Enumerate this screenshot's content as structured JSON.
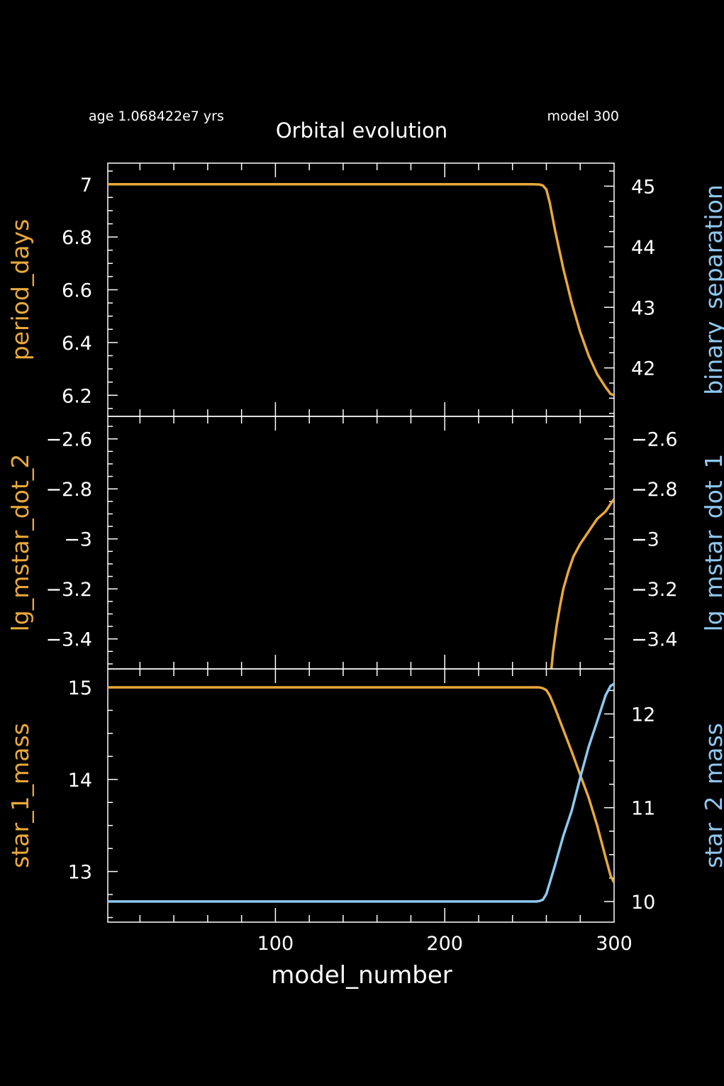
{
  "header": {
    "title": "Orbital evolution",
    "age_label": "age 1.068422e7 yrs",
    "model_label": "model 300"
  },
  "colors": {
    "background": "#000000",
    "axis": "#ffffff",
    "left_series": "#e8a93a",
    "right_series": "#8ec8f0"
  },
  "chart_data": [
    {
      "type": "line",
      "panel": "top",
      "xlabel": "model_number",
      "xlim": [
        1,
        300
      ],
      "left_axis": {
        "label": "period_days",
        "ylim": [
          6.12,
          7.08
        ],
        "ticks": [
          6.2,
          6.4,
          6.6,
          6.8,
          7
        ],
        "tick_labels": [
          "6.2",
          "6.4",
          "6.6",
          "6.8",
          "7"
        ]
      },
      "right_axis": {
        "label": "binary_separation",
        "ylim": [
          41.2,
          45.38
        ],
        "ticks": [
          42,
          43,
          44,
          45
        ],
        "tick_labels": [
          "42",
          "43",
          "44",
          "45"
        ]
      },
      "series": [
        {
          "name": "period_days",
          "axis": "left",
          "x": [
            1,
            50,
            100,
            150,
            200,
            240,
            252,
            256,
            258,
            260,
            262,
            265,
            270,
            275,
            280,
            285,
            290,
            295,
            298,
            300
          ],
          "values": [
            7.0,
            7.0,
            7.0,
            7.0,
            7.0,
            7.0,
            7.0,
            6.999,
            6.995,
            6.98,
            6.93,
            6.83,
            6.68,
            6.55,
            6.44,
            6.35,
            6.28,
            6.23,
            6.205,
            6.2
          ]
        }
      ]
    },
    {
      "type": "line",
      "panel": "middle",
      "xlabel": "model_number",
      "xlim": [
        1,
        300
      ],
      "left_axis": {
        "label": "lg_mstar_dot_2",
        "ylim": [
          -3.52,
          -2.51
        ],
        "ticks": [
          -3.4,
          -3.2,
          -3,
          -2.8,
          -2.6
        ],
        "tick_labels": [
          "−3.4",
          "−3.2",
          "−3",
          "−2.8",
          "−2.6"
        ]
      },
      "right_axis": {
        "label": "lg_mstar_dot_1",
        "ylim": [
          -3.52,
          -2.51
        ],
        "ticks": [
          -3.4,
          -3.2,
          -3,
          -2.8,
          -2.6
        ],
        "tick_labels": [
          "−3.4",
          "−3.2",
          "−3",
          "−2.8",
          "−2.6"
        ]
      },
      "series": [
        {
          "name": "lg_mstar_dot_2",
          "axis": "left",
          "x": [
            263,
            264,
            266,
            268,
            270,
            273,
            276,
            280,
            285,
            290,
            295,
            300
          ],
          "values": [
            -3.52,
            -3.45,
            -3.35,
            -3.27,
            -3.2,
            -3.13,
            -3.07,
            -3.02,
            -2.97,
            -2.92,
            -2.89,
            -2.84
          ]
        }
      ]
    },
    {
      "type": "line",
      "panel": "bottom",
      "xlabel": "model_number",
      "xlim": [
        1,
        300
      ],
      "x_ticks": [
        100,
        200,
        300
      ],
      "x_tick_labels": [
        "100",
        "200",
        "300"
      ],
      "left_axis": {
        "label": "star_1_mass",
        "ylim": [
          12.45,
          15.2
        ],
        "ticks": [
          13,
          14,
          15
        ],
        "tick_labels": [
          "13",
          "14",
          "15"
        ]
      },
      "right_axis": {
        "label": "star_2_mass",
        "ylim": [
          9.78,
          12.48
        ],
        "ticks": [
          10,
          11,
          12
        ],
        "tick_labels": [
          "10",
          "11",
          "12"
        ]
      },
      "series": [
        {
          "name": "star_1_mass",
          "axis": "left",
          "x": [
            1,
            50,
            100,
            150,
            200,
            250,
            254,
            256,
            258,
            260,
            262,
            265,
            270,
            275,
            280,
            285,
            290,
            295,
            298,
            300
          ],
          "values": [
            15.0,
            15.0,
            15.0,
            15.0,
            15.0,
            15.0,
            15.0,
            14.999,
            14.99,
            14.97,
            14.91,
            14.78,
            14.54,
            14.3,
            14.05,
            13.8,
            13.5,
            13.15,
            12.95,
            12.88
          ]
        },
        {
          "name": "star_2_mass",
          "axis": "right",
          "x": [
            1,
            50,
            100,
            150,
            200,
            250,
            254,
            256,
            258,
            260,
            262,
            265,
            270,
            275,
            280,
            285,
            290,
            295,
            298,
            300
          ],
          "values": [
            10.0,
            10.0,
            10.0,
            10.0,
            10.0,
            10.0,
            10.0,
            10.005,
            10.02,
            10.08,
            10.2,
            10.38,
            10.7,
            10.97,
            11.32,
            11.65,
            11.92,
            12.2,
            12.3,
            12.32
          ]
        }
      ]
    }
  ]
}
